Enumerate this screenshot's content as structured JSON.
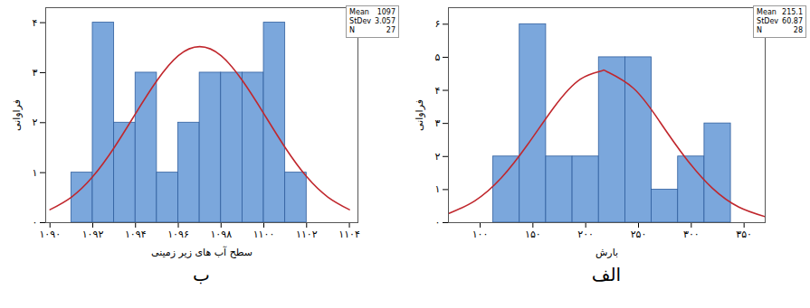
{
  "chart_data": [
    {
      "type": "histogram",
      "caption": "ب",
      "x_label": "سطح آب های زیر زمینی",
      "y_label": "فراوانی",
      "bins": [
        1091,
        1092,
        1093,
        1094,
        1095,
        1096,
        1097,
        1098,
        1099,
        1100,
        1101,
        1102
      ],
      "counts": [
        1,
        4,
        2,
        3,
        1,
        2,
        3,
        3,
        3,
        4,
        1
      ],
      "color": "#7ba7dc",
      "curve": {
        "type": "line",
        "color": "#c0272d",
        "x": [
          1090,
          1091,
          1092,
          1093,
          1094,
          1095,
          1096,
          1097,
          1098,
          1099,
          1100,
          1101,
          1102,
          1103,
          1104
        ],
        "values": [
          0.26,
          0.51,
          0.92,
          1.5,
          2.18,
          2.84,
          3.34,
          3.52,
          3.34,
          2.84,
          2.18,
          1.5,
          0.92,
          0.51,
          0.26
        ]
      },
      "stats": [
        {
          "label": "Mean",
          "value": 1097
        },
        {
          "label": "StDev",
          "value": 3.057
        },
        {
          "label": "N",
          "value": 27
        }
      ],
      "xlim": [
        1089.8,
        1104.4
      ],
      "ylim": [
        0,
        4.3
      ],
      "xticks": [
        {
          "value": 1090,
          "label": "۱۰۹۰"
        },
        {
          "value": 1092,
          "label": "۱۰۹۲"
        },
        {
          "value": 1094,
          "label": "۱۰۹۴"
        },
        {
          "value": 1096,
          "label": "۱۰۹۶"
        },
        {
          "value": 1098,
          "label": "۱۰۹۸"
        },
        {
          "value": 1100,
          "label": "۱۱۰۰"
        },
        {
          "value": 1102,
          "label": "۱۱۰۲"
        },
        {
          "value": 1104,
          "label": "۱۱۰۴"
        }
      ],
      "yticks": [
        {
          "value": 0,
          "label": "۰"
        },
        {
          "value": 1,
          "label": "۱"
        },
        {
          "value": 2,
          "label": "۲"
        },
        {
          "value": 3,
          "label": "۳"
        },
        {
          "value": 4,
          "label": "۴"
        }
      ]
    },
    {
      "type": "histogram",
      "caption": "الف",
      "x_label": "بارش",
      "y_label": "فراوانی",
      "bins": [
        112.5,
        137.5,
        162.5,
        187.5,
        212.5,
        237.5,
        262.5,
        287.5,
        312.5,
        337.5
      ],
      "counts": [
        2,
        6,
        2,
        2,
        5,
        5,
        1,
        2,
        3
      ],
      "color": "#7ba7dc",
      "curve": {
        "type": "line",
        "color": "#c0272d",
        "x": [
          70,
          95,
          120,
          145,
          170,
          195,
          215.1,
          220,
          245,
          270,
          295,
          320,
          345,
          370
        ],
        "values": [
          0.27,
          0.66,
          1.35,
          2.36,
          3.49,
          4.34,
          4.59,
          4.57,
          4.07,
          3.06,
          1.94,
          1.04,
          0.47,
          0.18
        ]
      },
      "stats": [
        {
          "label": "Mean",
          "value": 215.1
        },
        {
          "label": "StDev",
          "value": 60.87
        },
        {
          "label": "N",
          "value": 28
        }
      ],
      "xlim": [
        70,
        370
      ],
      "ylim": [
        0,
        6.5
      ],
      "xticks": [
        {
          "value": 100,
          "label": "۱۰۰"
        },
        {
          "value": 150,
          "label": "۱۵۰"
        },
        {
          "value": 200,
          "label": "۲۰۰"
        },
        {
          "value": 250,
          "label": "۲۵۰"
        },
        {
          "value": 300,
          "label": "۳۰۰"
        },
        {
          "value": 350,
          "label": "۳۵۰"
        }
      ],
      "yticks": [
        {
          "value": 0,
          "label": "۰"
        },
        {
          "value": 1,
          "label": "۱"
        },
        {
          "value": 2,
          "label": "۲"
        },
        {
          "value": 3,
          "label": "۳"
        },
        {
          "value": 4,
          "label": "۴"
        },
        {
          "value": 5,
          "label": "۵"
        },
        {
          "value": 6,
          "label": "۶"
        }
      ]
    }
  ]
}
